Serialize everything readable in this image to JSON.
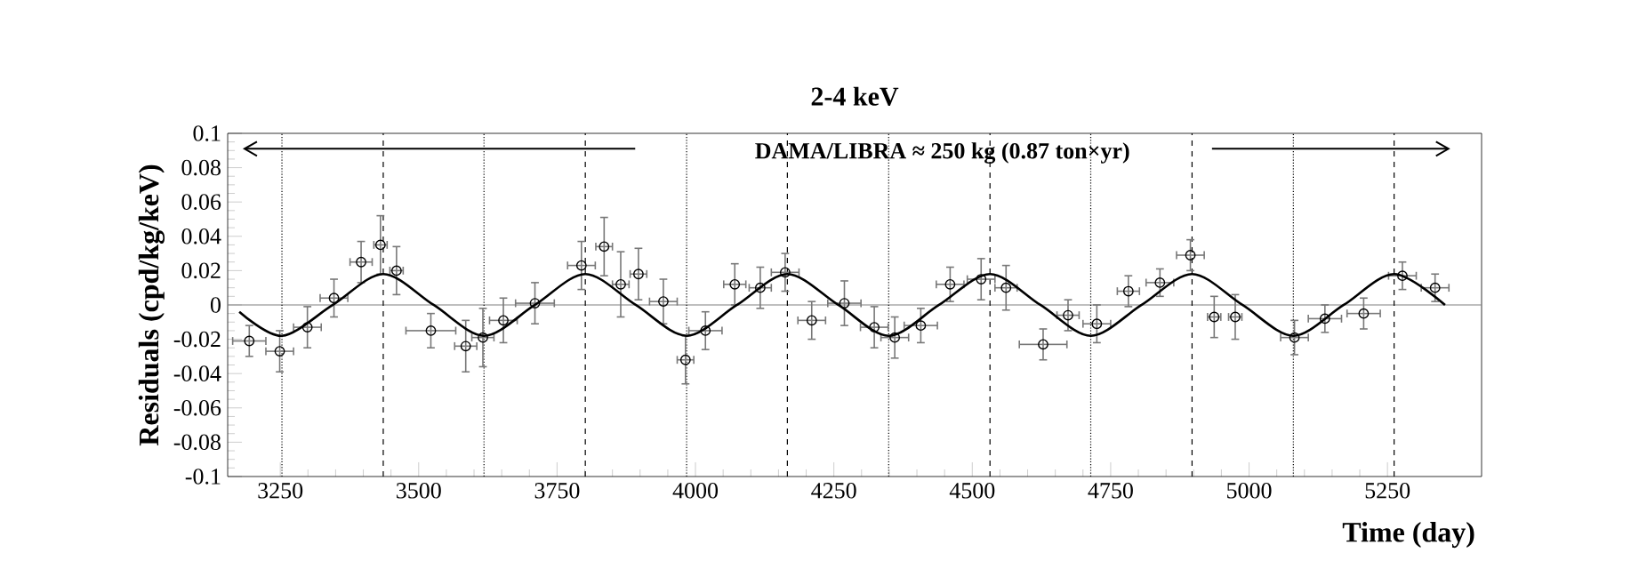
{
  "chart_data": {
    "type": "scatter",
    "title": "2-4 keV",
    "xlabel": "Time (day)",
    "ylabel": "Residuals (cpd/kg/keV)",
    "annotations": [
      "DAMA/LIBRA ≈ 250 kg   (0.87 ton×yr)"
    ],
    "xlim": [
      3155,
      5420
    ],
    "ylim": [
      -0.1,
      0.1
    ],
    "xticks": [
      3250,
      3500,
      3750,
      4000,
      4250,
      4500,
      4750,
      5000,
      5250
    ],
    "yticks": [
      -0.1,
      -0.08,
      -0.06,
      -0.04,
      -0.02,
      0,
      0.02,
      0.04,
      0.06,
      0.08,
      0.1
    ],
    "series": [
      {
        "type": "scatter",
        "color": "#000000",
        "marker": "circle",
        "x": [
          3194,
          3249,
          3299,
          3347,
          3396,
          3431,
          3460,
          3522,
          3585,
          3616,
          3653,
          3710,
          3794,
          3835,
          3865,
          3897,
          3942,
          3982,
          4018,
          4071,
          4117,
          4162,
          4210,
          4269,
          4323,
          4360,
          4407,
          4460,
          4516,
          4561,
          4628,
          4673,
          4725,
          4782,
          4839,
          4894,
          4937,
          4975,
          5082,
          5137,
          5207,
          5277,
          5336
        ],
        "values": [
          -0.021,
          -0.027,
          -0.013,
          0.004,
          0.025,
          0.035,
          0.02,
          -0.015,
          -0.024,
          -0.019,
          -0.009,
          0.001,
          0.023,
          0.034,
          0.012,
          0.018,
          0.002,
          -0.032,
          -0.015,
          0.012,
          0.01,
          0.019,
          -0.009,
          0.001,
          -0.013,
          -0.019,
          -0.012,
          0.012,
          0.015,
          0.01,
          -0.023,
          -0.006,
          -0.011,
          0.008,
          0.013,
          0.029,
          -0.007,
          -0.007,
          -0.019,
          -0.008,
          -0.005,
          0.017,
          0.01
        ],
        "errors": [
          0.009,
          0.012,
          0.012,
          0.011,
          0.012,
          0.017,
          0.014,
          0.01,
          0.015,
          0.017,
          0.013,
          0.012,
          0.014,
          0.017,
          0.019,
          0.015,
          0.013,
          0.014,
          0.011,
          0.012,
          0.012,
          0.011,
          0.011,
          0.013,
          0.012,
          0.012,
          0.01,
          0.01,
          0.012,
          0.013,
          0.009,
          0.009,
          0.011,
          0.009,
          0.008,
          0.009,
          0.012,
          0.013,
          0.01,
          0.008,
          0.009,
          0.008,
          0.008
        ],
        "xerrors": [
          30,
          25,
          25,
          25,
          20,
          12,
          12,
          45,
          20,
          20,
          25,
          35,
          25,
          15,
          15,
          15,
          25,
          15,
          30,
          20,
          20,
          25,
          25,
          30,
          25,
          25,
          30,
          25,
          25,
          20,
          43,
          20,
          25,
          20,
          25,
          25,
          12,
          12,
          25,
          30,
          30,
          25,
          25
        ]
      },
      {
        "type": "line",
        "color": "#000000",
        "x": [
          3176,
          3253,
          3345,
          3436,
          3527,
          3618,
          3710,
          3801,
          3892,
          3984,
          4075,
          4166,
          4258,
          4349,
          4440,
          4532,
          4623,
          4714,
          4806,
          4897,
          4988,
          5080,
          5171,
          5262,
          5354
        ],
        "values": [
          -0.004,
          -0.018,
          0,
          0.018,
          0,
          -0.018,
          0,
          0.018,
          0,
          -0.018,
          0,
          0.018,
          0,
          -0.018,
          0,
          0.018,
          0,
          -0.018,
          0,
          0.018,
          0,
          -0.018,
          0,
          0.018,
          0
        ]
      }
    ],
    "ref_lines": [
      {
        "axis": "y",
        "value": 0,
        "color": "#808080",
        "line_style": "solid"
      },
      {
        "axis": "x",
        "value": 3253,
        "color": "#000000",
        "line_style": "dotted"
      },
      {
        "axis": "x",
        "value": 3436,
        "color": "#000000",
        "line_style": "dashed"
      },
      {
        "axis": "x",
        "value": 3618,
        "color": "#000000",
        "line_style": "dotted"
      },
      {
        "axis": "x",
        "value": 3801,
        "color": "#000000",
        "line_style": "dashed"
      },
      {
        "axis": "x",
        "value": 3984,
        "color": "#000000",
        "line_style": "dotted"
      },
      {
        "axis": "x",
        "value": 4166,
        "color": "#000000",
        "line_style": "dashed"
      },
      {
        "axis": "x",
        "value": 4349,
        "color": "#000000",
        "line_style": "dotted"
      },
      {
        "axis": "x",
        "value": 4532,
        "color": "#000000",
        "line_style": "dashed"
      },
      {
        "axis": "x",
        "value": 4714,
        "color": "#000000",
        "line_style": "dotted"
      },
      {
        "axis": "x",
        "value": 4897,
        "color": "#000000",
        "line_style": "dashed"
      },
      {
        "axis": "x",
        "value": 5080,
        "color": "#000000",
        "line_style": "dotted"
      },
      {
        "axis": "x",
        "value": 5262,
        "color": "#000000",
        "line_style": "dashed"
      }
    ]
  }
}
